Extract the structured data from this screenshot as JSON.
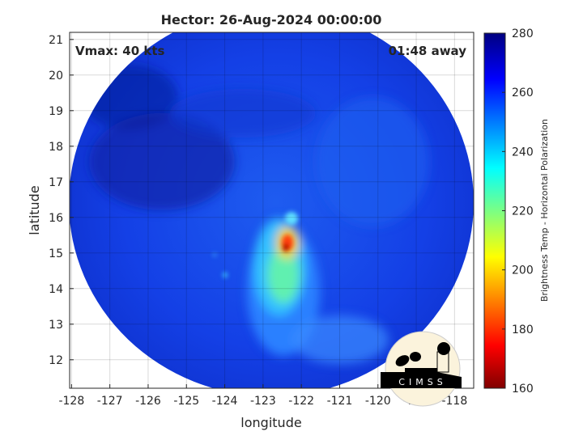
{
  "title": "Hector: 26-Aug-2024 00:00:00",
  "vmax_label": "Vmax: 40 kts",
  "time_label": "01:48 away",
  "logo_text": "CIMSS",
  "chart_data": {
    "type": "heatmap",
    "title": "Hector: 26-Aug-2024 00:00:00",
    "xlabel": "longitude",
    "ylabel": "latitude",
    "xlim": [
      -128.05,
      -117.5
    ],
    "ylim": [
      11.2,
      21.2
    ],
    "xticks": [
      "-128",
      "-127",
      "-126",
      "-125",
      "-124",
      "-123",
      "-122",
      "-121",
      "-120",
      "-119",
      "-118"
    ],
    "yticks": [
      "12",
      "13",
      "14",
      "15",
      "16",
      "17",
      "18",
      "19",
      "20",
      "21"
    ],
    "grid": true,
    "colorbar": {
      "label": "Brightness Temp - Horizontal Polarization",
      "range": [
        160,
        280
      ],
      "ticks": [
        "160",
        "180",
        "200",
        "220",
        "240",
        "260",
        "280"
      ],
      "colormap": "jet"
    },
    "features": {
      "storm_center_lon": -122.5,
      "storm_center_lat": 15,
      "min_temp_approx": 175
    }
  }
}
